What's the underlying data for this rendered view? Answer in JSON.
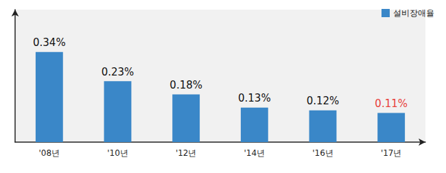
{
  "chart_data": {
    "type": "bar",
    "categories": [
      "'08년",
      "'10년",
      "'12년",
      "'14년",
      "'16년",
      "'17년"
    ],
    "series": [
      {
        "name": "설비장애율",
        "color": "#3a87c8",
        "values": [
          0.34,
          0.23,
          0.18,
          0.13,
          0.12,
          0.11
        ],
        "value_labels": [
          "0.34%",
          "0.23%",
          "0.18%",
          "0.13%",
          "0.12%",
          "0.11%"
        ]
      }
    ],
    "ylim": [
      0,
      0.5
    ],
    "legend": "upper right",
    "data_labels": true,
    "tick_labels": "x",
    "grid": false
  }
}
